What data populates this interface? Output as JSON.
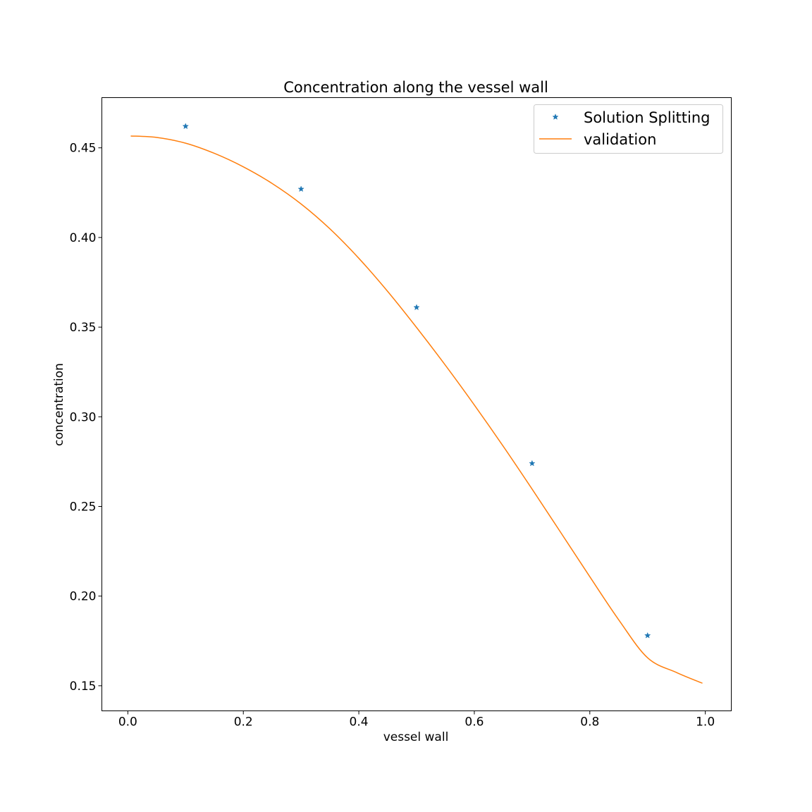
{
  "chart_data": {
    "type": "line",
    "title": "Concentration along the vessel wall",
    "xlabel": "vessel wall",
    "ylabel": "concentration",
    "xlim": [
      -0.045,
      1.045
    ],
    "ylim": [
      0.136,
      0.478
    ],
    "xticks": [
      0.0,
      0.2,
      0.4,
      0.6,
      0.8,
      1.0
    ],
    "xtick_labels": [
      "0.0",
      "0.2",
      "0.4",
      "0.6",
      "0.8",
      "1.0"
    ],
    "yticks": [
      0.15,
      0.2,
      0.25,
      0.3,
      0.35,
      0.4,
      0.45
    ],
    "ytick_labels": [
      "0.15",
      "0.20",
      "0.25",
      "0.30",
      "0.35",
      "0.40",
      "0.45"
    ],
    "grid": false,
    "legend_position": "top-right",
    "series": [
      {
        "name": "Solution Splitting",
        "kind": "scatter",
        "marker": "star",
        "color": "#1f77b4",
        "x": [
          0.1,
          0.3,
          0.5,
          0.7,
          0.9
        ],
        "y": [
          0.462,
          0.427,
          0.361,
          0.274,
          0.178
        ]
      },
      {
        "name": "validation",
        "kind": "line",
        "color": "#ff7f0e",
        "x": [
          0.005,
          0.05,
          0.1,
          0.15,
          0.2,
          0.25,
          0.3,
          0.35,
          0.4,
          0.45,
          0.5,
          0.55,
          0.6,
          0.65,
          0.7,
          0.75,
          0.8,
          0.85,
          0.9,
          0.95,
          0.995
        ],
        "y": [
          0.4566,
          0.4558,
          0.4526,
          0.4469,
          0.4394,
          0.4301,
          0.4187,
          0.4048,
          0.3884,
          0.3699,
          0.3498,
          0.3287,
          0.3066,
          0.2836,
          0.2597,
          0.2353,
          0.2108,
          0.1868,
          0.1656,
          0.1574,
          0.1514
        ]
      }
    ]
  }
}
